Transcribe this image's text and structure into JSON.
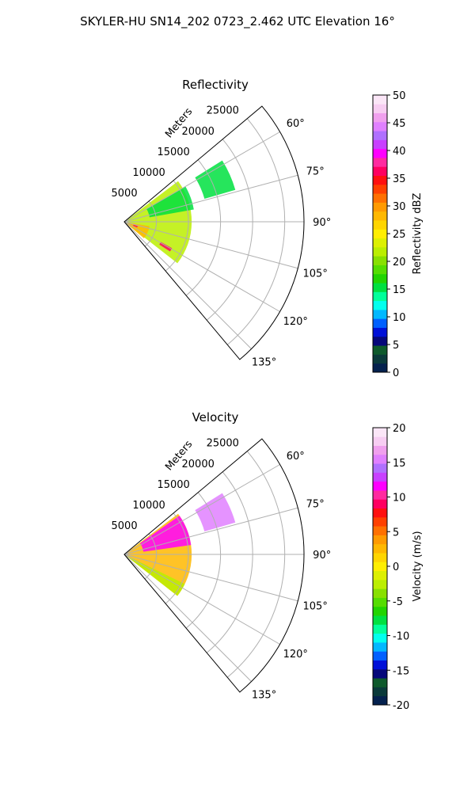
{
  "figure": {
    "suptitle": "SKYLER-HU  SN14_202  0723_2.462 UTC Elevation 16°"
  },
  "chart_data": [
    {
      "type": "heatmap",
      "subtype": "polar-sector",
      "title": "Reflectivity",
      "radial_label": "Meters",
      "r_max": 28000,
      "r_ticks": [
        5000,
        10000,
        15000,
        20000,
        25000
      ],
      "theta_range_deg": [
        50,
        140
      ],
      "theta_ticks_deg": [
        60,
        75,
        90,
        105,
        120,
        135
      ],
      "theta_tick_labels": [
        "60°",
        "75°",
        "90°",
        "105°",
        "120°",
        "135°"
      ],
      "grid": true,
      "colorbar": {
        "label": "Reflectivity dBZ",
        "min": 0,
        "max": 50,
        "ticks": [
          0,
          5,
          10,
          15,
          20,
          25,
          30,
          35,
          40,
          45,
          50
        ],
        "colors": [
          "#04214e",
          "#0a3a3a",
          "#0e5a2c",
          "#06087a",
          "#0010d8",
          "#0060ff",
          "#00b8ff",
          "#00ffee",
          "#00ff9a",
          "#00e040",
          "#22d400",
          "#55dd00",
          "#88e000",
          "#bbee00",
          "#ddf000",
          "#ffee00",
          "#ffd500",
          "#ffb800",
          "#ff9a00",
          "#ff7000",
          "#ff4000",
          "#ff1010",
          "#ff0060",
          "#ff2aa0",
          "#ff00ff",
          "#c840ff",
          "#b070ff",
          "#e080ff",
          "#f0a0ee",
          "#f7cdf2",
          "#fbe6f7"
        ]
      },
      "echo_regions": [
        {
          "name": "main-echo",
          "r": [
            0,
            10500
          ],
          "theta": [
            53,
            128
          ],
          "value": 22
        },
        {
          "name": "near-core",
          "r": [
            0,
            4000
          ],
          "theta": [
            100,
            130
          ],
          "value": 28
        },
        {
          "name": "upper-band",
          "r": [
            4000,
            11000
          ],
          "theta": [
            60,
            80
          ],
          "value": 15
        },
        {
          "name": "outer-patch",
          "r": [
            13000,
            18000
          ],
          "theta": [
            58,
            74
          ],
          "value": 16
        },
        {
          "name": "hot-spot-1",
          "r": [
            1500,
            2200
          ],
          "theta": [
            108,
            114
          ],
          "value": 36
        },
        {
          "name": "hot-spot-2",
          "r": [
            6500,
            8500
          ],
          "theta": [
            119,
            123
          ],
          "value": 36
        }
      ]
    },
    {
      "type": "heatmap",
      "subtype": "polar-sector",
      "title": "Velocity",
      "radial_label": "Meters",
      "r_max": 28000,
      "r_ticks": [
        5000,
        10000,
        15000,
        20000,
        25000
      ],
      "theta_range_deg": [
        50,
        140
      ],
      "theta_ticks_deg": [
        60,
        75,
        90,
        105,
        120,
        135
      ],
      "theta_tick_labels": [
        "60°",
        "75°",
        "90°",
        "105°",
        "120°",
        "135°"
      ],
      "grid": true,
      "colorbar": {
        "label": "Velocity (m/s)",
        "min": -20,
        "max": 20,
        "ticks": [
          -20,
          -15,
          -10,
          -5,
          0,
          5,
          10,
          15,
          20
        ],
        "colors": [
          "#04214e",
          "#0a3a3a",
          "#0e5a2c",
          "#06087a",
          "#0010d8",
          "#0060ff",
          "#00b8ff",
          "#00ffee",
          "#00ff9a",
          "#00e040",
          "#22d400",
          "#55dd00",
          "#88e000",
          "#bbee00",
          "#ddf000",
          "#ffee00",
          "#ffd500",
          "#ffb800",
          "#ff9a00",
          "#ff7000",
          "#ff4000",
          "#ff1010",
          "#ff0060",
          "#ff2aa0",
          "#ff00ff",
          "#c840ff",
          "#b070ff",
          "#e080ff",
          "#f0a0ee",
          "#f7cdf2",
          "#fbe6f7"
        ]
      },
      "echo_regions": [
        {
          "name": "main-echo",
          "r": [
            0,
            10500
          ],
          "theta": [
            53,
            128
          ],
          "value": 2
        },
        {
          "name": "outbound-core",
          "r": [
            3000,
            10500
          ],
          "theta": [
            55,
            82
          ],
          "value": 11
        },
        {
          "name": "inbound-edge",
          "r": [
            0,
            10500
          ],
          "theta": [
            116,
            128
          ],
          "value": -3
        },
        {
          "name": "outer-patch",
          "r": [
            13000,
            18000
          ],
          "theta": [
            58,
            74
          ],
          "value": 16
        }
      ]
    }
  ]
}
